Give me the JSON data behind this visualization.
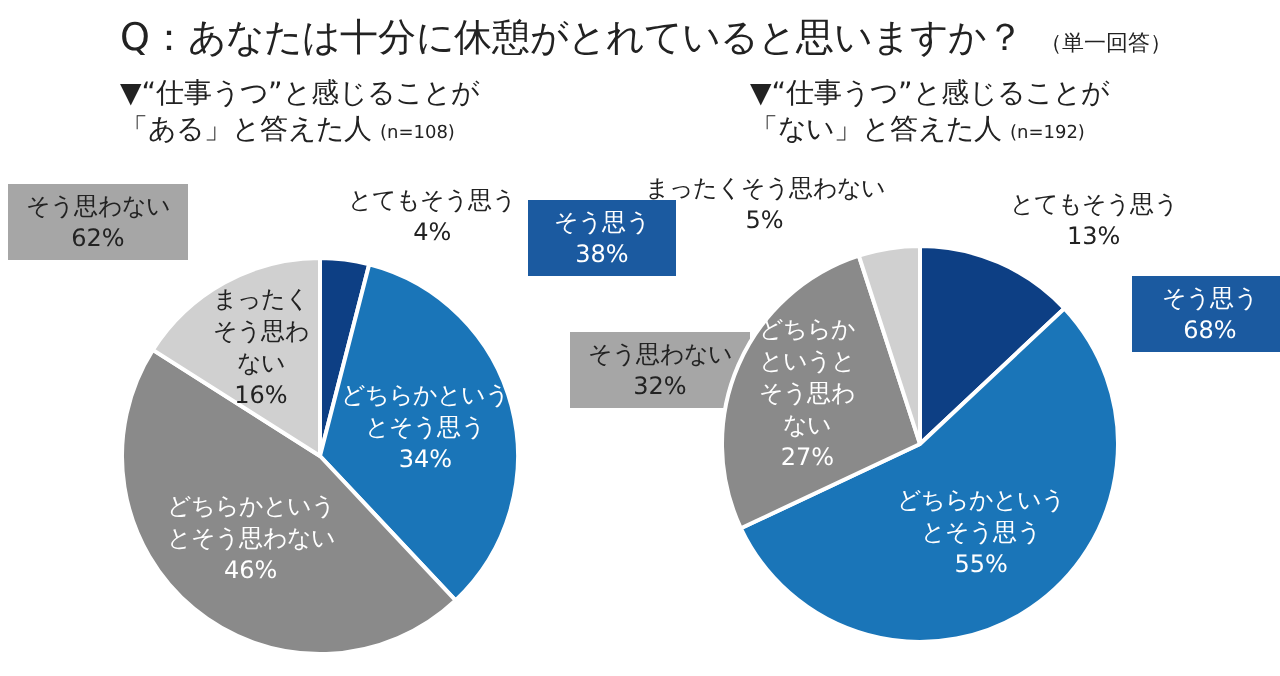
{
  "chart_data": [
    {
      "type": "pie",
      "title": "▼“仕事うつ”と感じることが「ある」と答えた人",
      "subtitle": "(n=108)",
      "annotations": [
        "Q：あなたは十分に休憩がとれていると思いますか？",
        "（単一回答）",
        "そう思う 38%",
        "そう思わない 62%"
      ],
      "categories": [
        "とてもそう思う",
        "どちらかというとそう思う",
        "どちらかというとそう思わない",
        "まったくそう思わない"
      ],
      "values": [
        4,
        34,
        46,
        16
      ],
      "value_labels": [
        "4%",
        "34%",
        "46%",
        "16%"
      ],
      "colors": [
        "#0d3f84",
        "#1a75b8",
        "#8a8a8a",
        "#d0d0d0"
      ],
      "legend": false
    },
    {
      "type": "pie",
      "title": "▼“仕事うつ”と感じることが「ない」と答えた人",
      "subtitle": "(n=192)",
      "annotations": [
        "そう思う 68%",
        "そう思わない 32%"
      ],
      "categories": [
        "とてもそう思う",
        "どちらかというとそう思う",
        "どちらかというとそう思わない",
        "まったくそう思わない"
      ],
      "values": [
        13,
        55,
        27,
        5
      ],
      "value_labels": [
        "13%",
        "55%",
        "27%",
        "5%"
      ],
      "colors": [
        "#0d3f84",
        "#1a75b8",
        "#8a8a8a",
        "#d0d0d0"
      ],
      "legend": false
    }
  ]
}
